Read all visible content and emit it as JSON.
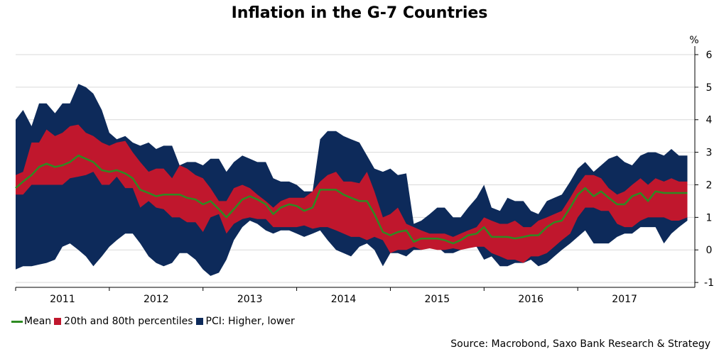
{
  "chart_data": {
    "type": "area",
    "title": "Inflation in the G-7 Countries",
    "ylabel": "%",
    "ylim": [
      -1,
      6
    ],
    "yticks": [
      -1,
      0,
      1,
      2,
      3,
      4,
      5,
      6
    ],
    "xlim": [
      2010.5,
      2017.75
    ],
    "year_labels": [
      {
        "label": "2011",
        "x": 2011
      },
      {
        "label": "2012",
        "x": 2012
      },
      {
        "label": "2013",
        "x": 2013
      },
      {
        "label": "2014",
        "x": 2014
      },
      {
        "label": "2015",
        "x": 2015
      },
      {
        "label": "2016",
        "x": 2016
      },
      {
        "label": "2017",
        "x": 2017
      }
    ],
    "x_separators": [
      2011.5,
      2012.5,
      2013.5,
      2014.5,
      2015.5,
      2016.5
    ],
    "series": [
      {
        "name": "PCI: Higher, lower",
        "color": "#0d2a5a",
        "x": [
          2010.5,
          2010.58,
          2010.67,
          2010.75,
          2010.83,
          2010.92,
          2011.0,
          2011.08,
          2011.17,
          2011.25,
          2011.33,
          2011.42,
          2011.5,
          2011.58,
          2011.67,
          2011.75,
          2011.83,
          2011.92,
          2012.0,
          2012.08,
          2012.17,
          2012.25,
          2012.33,
          2012.42,
          2012.5,
          2012.58,
          2012.67,
          2012.75,
          2012.83,
          2012.92,
          2013.0,
          2013.08,
          2013.17,
          2013.25,
          2013.33,
          2013.42,
          2013.5,
          2013.58,
          2013.67,
          2013.75,
          2013.83,
          2013.92,
          2014.0,
          2014.08,
          2014.17,
          2014.25,
          2014.33,
          2014.42,
          2014.5,
          2014.58,
          2014.67,
          2014.75,
          2014.83,
          2014.92,
          2015.0,
          2015.08,
          2015.17,
          2015.25,
          2015.33,
          2015.42,
          2015.5,
          2015.58,
          2015.67,
          2015.75,
          2015.83,
          2015.92,
          2016.0,
          2016.08,
          2016.17,
          2016.25,
          2016.33,
          2016.42,
          2016.5,
          2016.58,
          2016.67,
          2016.75,
          2016.83,
          2016.92,
          2017.0,
          2017.08,
          2017.17,
          2017.25,
          2017.33,
          2017.42,
          2017.5,
          2017.58,
          2017.67
        ],
        "high": [
          4.0,
          4.3,
          3.8,
          4.5,
          4.5,
          4.2,
          4.5,
          4.5,
          5.1,
          5.0,
          4.8,
          4.3,
          3.6,
          3.4,
          3.5,
          3.3,
          3.2,
          3.3,
          3.1,
          3.2,
          3.2,
          2.6,
          2.7,
          2.7,
          2.6,
          2.8,
          2.8,
          2.4,
          2.7,
          2.9,
          2.8,
          2.7,
          2.7,
          2.2,
          2.1,
          2.1,
          2.0,
          1.8,
          1.8,
          3.4,
          3.65,
          3.65,
          3.5,
          3.4,
          3.3,
          2.9,
          2.5,
          2.4,
          2.5,
          2.3,
          2.35,
          0.8,
          0.9,
          1.1,
          1.3,
          1.3,
          1.0,
          1.0,
          1.3,
          1.6,
          2.0,
          1.3,
          1.2,
          1.6,
          1.5,
          1.5,
          1.2,
          1.1,
          1.5,
          1.6,
          1.7,
          2.1,
          2.5,
          2.7,
          2.4,
          2.6,
          2.8,
          2.9,
          2.7,
          2.6,
          2.9,
          3.0,
          3.0,
          2.9,
          3.1,
          2.9,
          2.9
        ],
        "low": [
          -0.6,
          -0.5,
          -0.5,
          -0.45,
          -0.4,
          -0.3,
          0.1,
          0.2,
          0.0,
          -0.2,
          -0.5,
          -0.2,
          0.1,
          0.3,
          0.5,
          0.5,
          0.2,
          -0.2,
          -0.4,
          -0.5,
          -0.4,
          -0.1,
          -0.1,
          -0.3,
          -0.6,
          -0.8,
          -0.7,
          -0.3,
          0.3,
          0.7,
          0.9,
          0.8,
          0.6,
          0.5,
          0.6,
          0.6,
          0.5,
          0.4,
          0.5,
          0.6,
          0.3,
          0.0,
          -0.1,
          -0.2,
          0.1,
          0.2,
          0.0,
          -0.5,
          -0.1,
          -0.1,
          -0.2,
          0.0,
          0.0,
          0.1,
          0.1,
          -0.1,
          -0.1,
          0.0,
          0.1,
          0.1,
          -0.3,
          -0.2,
          -0.5,
          -0.5,
          -0.4,
          -0.4,
          -0.3,
          -0.5,
          -0.4,
          -0.2,
          0.0,
          0.2,
          0.4,
          0.6,
          0.2,
          0.2,
          0.2,
          0.4,
          0.5,
          0.5,
          0.7,
          0.7,
          0.7,
          0.2,
          0.5,
          0.7,
          0.9
        ]
      },
      {
        "name": "20th and 80th percentiles",
        "color": "#c0172d",
        "x": [
          2010.5,
          2010.58,
          2010.67,
          2010.75,
          2010.83,
          2010.92,
          2011.0,
          2011.08,
          2011.17,
          2011.25,
          2011.33,
          2011.42,
          2011.5,
          2011.58,
          2011.67,
          2011.75,
          2011.83,
          2011.92,
          2012.0,
          2012.08,
          2012.17,
          2012.25,
          2012.33,
          2012.42,
          2012.5,
          2012.58,
          2012.67,
          2012.75,
          2012.83,
          2012.92,
          2013.0,
          2013.08,
          2013.17,
          2013.25,
          2013.33,
          2013.42,
          2013.5,
          2013.58,
          2013.67,
          2013.75,
          2013.83,
          2013.92,
          2014.0,
          2014.08,
          2014.17,
          2014.25,
          2014.33,
          2014.42,
          2014.5,
          2014.58,
          2014.67,
          2014.75,
          2014.83,
          2014.92,
          2015.0,
          2015.08,
          2015.17,
          2015.25,
          2015.33,
          2015.42,
          2015.5,
          2015.58,
          2015.67,
          2015.75,
          2015.83,
          2015.92,
          2016.0,
          2016.08,
          2016.17,
          2016.25,
          2016.33,
          2016.42,
          2016.5,
          2016.58,
          2016.67,
          2016.75,
          2016.83,
          2016.92,
          2017.0,
          2017.08,
          2017.17,
          2017.25,
          2017.33,
          2017.42,
          2017.5,
          2017.58,
          2017.67
        ],
        "high": [
          2.3,
          2.4,
          3.3,
          3.3,
          3.7,
          3.5,
          3.6,
          3.8,
          3.85,
          3.6,
          3.5,
          3.3,
          3.2,
          3.3,
          3.35,
          3.0,
          2.7,
          2.4,
          2.5,
          2.5,
          2.2,
          2.6,
          2.5,
          2.3,
          2.2,
          1.9,
          1.5,
          1.5,
          1.9,
          2.0,
          1.9,
          1.7,
          1.5,
          1.3,
          1.5,
          1.6,
          1.6,
          1.6,
          1.8,
          2.1,
          2.3,
          2.4,
          2.1,
          2.1,
          2.05,
          2.4,
          1.8,
          1.0,
          1.1,
          1.3,
          0.8,
          0.7,
          0.6,
          0.5,
          0.5,
          0.5,
          0.4,
          0.5,
          0.6,
          0.7,
          1.0,
          0.9,
          0.8,
          0.8,
          0.9,
          0.7,
          0.7,
          0.9,
          1.0,
          1.1,
          1.2,
          1.6,
          2.0,
          2.3,
          2.3,
          2.2,
          1.9,
          1.7,
          1.8,
          2.0,
          2.2,
          2.0,
          2.2,
          2.1,
          2.2,
          2.1,
          2.1
        ],
        "low": [
          1.7,
          1.7,
          2.0,
          2.0,
          2.0,
          2.0,
          2.0,
          2.2,
          2.25,
          2.3,
          2.4,
          2.0,
          2.0,
          2.25,
          1.9,
          1.9,
          1.3,
          1.5,
          1.3,
          1.25,
          1.0,
          1.0,
          0.85,
          0.85,
          0.55,
          1.0,
          1.1,
          0.5,
          0.8,
          0.95,
          1.0,
          0.95,
          0.95,
          0.7,
          0.7,
          0.7,
          0.7,
          0.75,
          0.65,
          0.7,
          0.7,
          0.6,
          0.5,
          0.4,
          0.4,
          0.3,
          0.4,
          0.3,
          -0.1,
          0.0,
          0.0,
          0.1,
          0.0,
          0.05,
          0.0,
          0.0,
          0.05,
          0.0,
          0.05,
          0.1,
          0.1,
          -0.1,
          -0.2,
          -0.3,
          -0.3,
          -0.4,
          -0.2,
          -0.2,
          -0.1,
          0.1,
          0.3,
          0.5,
          1.0,
          1.3,
          1.3,
          1.2,
          1.2,
          0.8,
          0.7,
          0.7,
          0.9,
          1.0,
          1.0,
          1.0,
          0.9,
          0.9,
          1.0
        ]
      },
      {
        "name": "Mean",
        "color": "#2e8b22",
        "x": [
          2010.5,
          2010.58,
          2010.67,
          2010.75,
          2010.83,
          2010.92,
          2011.0,
          2011.08,
          2011.17,
          2011.25,
          2011.33,
          2011.42,
          2011.5,
          2011.58,
          2011.67,
          2011.75,
          2011.83,
          2011.92,
          2012.0,
          2012.08,
          2012.17,
          2012.25,
          2012.33,
          2012.42,
          2012.5,
          2012.58,
          2012.67,
          2012.75,
          2012.83,
          2012.92,
          2013.0,
          2013.08,
          2013.17,
          2013.25,
          2013.33,
          2013.42,
          2013.5,
          2013.58,
          2013.67,
          2013.75,
          2013.83,
          2013.92,
          2014.0,
          2014.08,
          2014.17,
          2014.25,
          2014.33,
          2014.42,
          2014.5,
          2014.58,
          2014.67,
          2014.75,
          2014.83,
          2014.92,
          2015.0,
          2015.08,
          2015.17,
          2015.25,
          2015.33,
          2015.42,
          2015.5,
          2015.58,
          2015.67,
          2015.75,
          2015.83,
          2015.92,
          2016.0,
          2016.08,
          2016.17,
          2016.25,
          2016.33,
          2016.42,
          2016.5,
          2016.58,
          2016.67,
          2016.75,
          2016.83,
          2016.92,
          2017.0,
          2017.08,
          2017.17,
          2017.25,
          2017.33,
          2017.42,
          2017.5,
          2017.58,
          2017.67
        ],
        "values": [
          1.9,
          2.1,
          2.3,
          2.55,
          2.65,
          2.55,
          2.6,
          2.7,
          2.9,
          2.8,
          2.7,
          2.45,
          2.4,
          2.45,
          2.35,
          2.2,
          1.85,
          1.75,
          1.65,
          1.7,
          1.7,
          1.7,
          1.6,
          1.55,
          1.4,
          1.5,
          1.25,
          1.0,
          1.25,
          1.55,
          1.65,
          1.55,
          1.4,
          1.1,
          1.3,
          1.4,
          1.35,
          1.2,
          1.3,
          1.85,
          1.85,
          1.85,
          1.7,
          1.6,
          1.5,
          1.5,
          1.1,
          0.55,
          0.45,
          0.55,
          0.6,
          0.25,
          0.35,
          0.35,
          0.35,
          0.3,
          0.2,
          0.3,
          0.45,
          0.5,
          0.7,
          0.4,
          0.4,
          0.4,
          0.35,
          0.4,
          0.45,
          0.45,
          0.7,
          0.85,
          0.9,
          1.3,
          1.7,
          1.9,
          1.65,
          1.8,
          1.6,
          1.4,
          1.4,
          1.65,
          1.75,
          1.5,
          1.8,
          1.75,
          1.75,
          1.75,
          1.75
        ]
      }
    ]
  },
  "legend": {
    "mean": "Mean",
    "percentiles": "20th and 80th percentiles",
    "pci": "PCI: Higher, lower"
  },
  "source": "Source: Macrobond, Saxo Bank Research & Strategy"
}
